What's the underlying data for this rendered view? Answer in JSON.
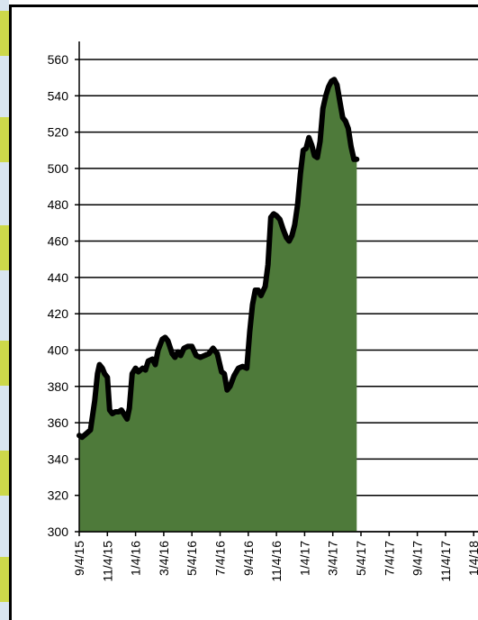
{
  "chart_data": {
    "type": "area",
    "title": "",
    "xlabel": "",
    "ylabel": "",
    "ylim": [
      300,
      560
    ],
    "yticks": [
      300,
      320,
      340,
      360,
      380,
      400,
      420,
      440,
      460,
      480,
      500,
      520,
      540,
      560
    ],
    "xticks": [
      "9/4/15",
      "11/4/15",
      "1/4/16",
      "3/4/16",
      "5/4/16",
      "7/4/16",
      "9/4/16",
      "11/4/16",
      "1/4/17",
      "3/4/17",
      "5/4/17",
      "7/4/17",
      "9/4/17",
      "11/4/17",
      "1/4/18"
    ],
    "grid": "horizontal",
    "fill_color": "#4e7a3a",
    "line_color": "#000000",
    "series": [
      {
        "points": [
          [
            0,
            353
          ],
          [
            0.1,
            352
          ],
          [
            0.25,
            354
          ],
          [
            0.4,
            356
          ],
          [
            0.55,
            372
          ],
          [
            0.65,
            387
          ],
          [
            0.72,
            392
          ],
          [
            0.82,
            390
          ],
          [
            0.9,
            387
          ],
          [
            1.0,
            385
          ],
          [
            1.08,
            367
          ],
          [
            1.18,
            365
          ],
          [
            1.28,
            366
          ],
          [
            1.4,
            366
          ],
          [
            1.5,
            367
          ],
          [
            1.62,
            364
          ],
          [
            1.7,
            362
          ],
          [
            1.78,
            368
          ],
          [
            1.88,
            387
          ],
          [
            2.0,
            390
          ],
          [
            2.1,
            388
          ],
          [
            2.25,
            390
          ],
          [
            2.35,
            389
          ],
          [
            2.45,
            394
          ],
          [
            2.6,
            395
          ],
          [
            2.7,
            392
          ],
          [
            2.8,
            400
          ],
          [
            2.95,
            406
          ],
          [
            3.05,
            407
          ],
          [
            3.15,
            405
          ],
          [
            3.3,
            398
          ],
          [
            3.4,
            396
          ],
          [
            3.5,
            399
          ],
          [
            3.6,
            397
          ],
          [
            3.72,
            401
          ],
          [
            3.85,
            402
          ],
          [
            4.0,
            402
          ],
          [
            4.15,
            397
          ],
          [
            4.3,
            396
          ],
          [
            4.45,
            397
          ],
          [
            4.6,
            398
          ],
          [
            4.75,
            401
          ],
          [
            4.9,
            398
          ],
          [
            5.05,
            388
          ],
          [
            5.15,
            387
          ],
          [
            5.25,
            378
          ],
          [
            5.35,
            380
          ],
          [
            5.5,
            386
          ],
          [
            5.65,
            390
          ],
          [
            5.8,
            391
          ],
          [
            5.95,
            390
          ],
          [
            6.05,
            410
          ],
          [
            6.15,
            425
          ],
          [
            6.25,
            433
          ],
          [
            6.35,
            433
          ],
          [
            6.45,
            430
          ],
          [
            6.6,
            435
          ],
          [
            6.7,
            447
          ],
          [
            6.8,
            473
          ],
          [
            6.9,
            475
          ],
          [
            7.0,
            474
          ],
          [
            7.12,
            472
          ],
          [
            7.25,
            466
          ],
          [
            7.35,
            462
          ],
          [
            7.45,
            460
          ],
          [
            7.55,
            463
          ],
          [
            7.65,
            469
          ],
          [
            7.75,
            480
          ],
          [
            7.85,
            497
          ],
          [
            7.95,
            510
          ],
          [
            8.05,
            511
          ],
          [
            8.15,
            517
          ],
          [
            8.25,
            513
          ],
          [
            8.35,
            507
          ],
          [
            8.45,
            506
          ],
          [
            8.55,
            515
          ],
          [
            8.65,
            533
          ],
          [
            8.75,
            540
          ],
          [
            8.85,
            545
          ],
          [
            8.95,
            548
          ],
          [
            9.05,
            549
          ],
          [
            9.15,
            546
          ],
          [
            9.25,
            537
          ],
          [
            9.35,
            528
          ],
          [
            9.45,
            526
          ],
          [
            9.55,
            522
          ],
          [
            9.65,
            512
          ],
          [
            9.75,
            505
          ],
          [
            9.85,
            505
          ]
        ]
      }
    ]
  }
}
